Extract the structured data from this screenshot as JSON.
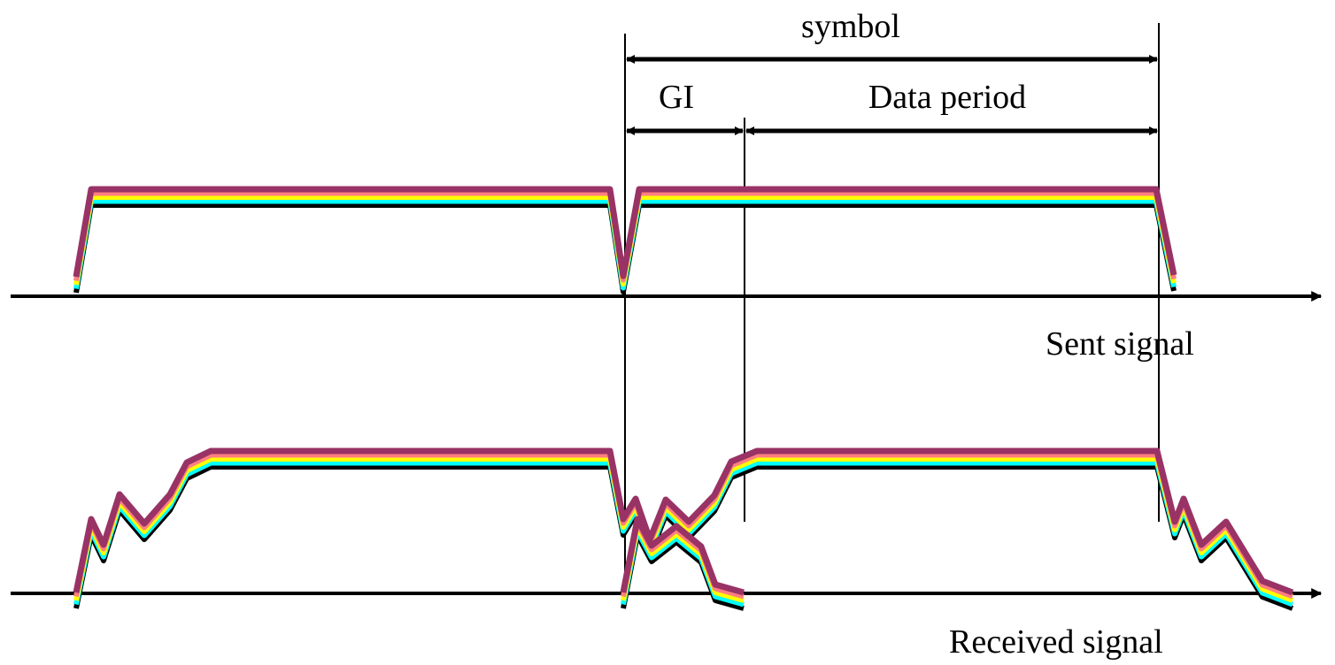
{
  "labels": {
    "symbol": "symbol",
    "guard_interval": "GI",
    "data_period": "Data period",
    "sent_signal": "Sent signal",
    "received_signal": "Received signal"
  },
  "colors": {
    "background": "#ffffff",
    "lines": "#000000",
    "band_layers": [
      "#000000",
      "#00ffff",
      "#ffff00",
      "#ff8080",
      "#993366"
    ]
  }
}
